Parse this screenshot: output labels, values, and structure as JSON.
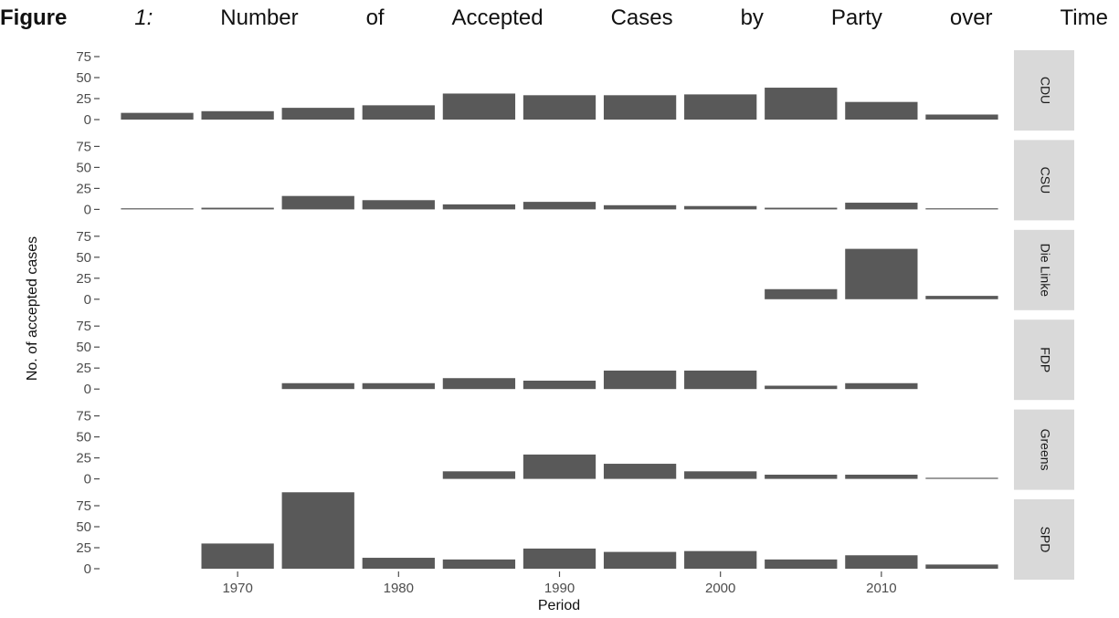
{
  "caption": {
    "words": [
      "Figure",
      "1:",
      "Number",
      "of",
      "Accepted",
      "Cases",
      "by",
      "Party",
      "over",
      "Time"
    ]
  },
  "chart_data": {
    "type": "bar",
    "facet": "Party",
    "xlabel": "Period",
    "ylabel": "No. of accepted cases",
    "x": [
      1965,
      1970,
      1975,
      1980,
      1985,
      1990,
      1995,
      2000,
      2005,
      2010,
      2015
    ],
    "x_ticks": [
      1970,
      1980,
      1990,
      2000,
      2010
    ],
    "y_ticks": [
      0,
      25,
      50,
      75
    ],
    "ylim": [
      0,
      82
    ],
    "grid": false,
    "bar_color": "#595959",
    "strip_color": "#d9d9d9",
    "panels": [
      {
        "name": "CDU",
        "values": [
          8,
          10,
          14,
          17,
          31,
          29,
          29,
          30,
          38,
          21,
          6
        ]
      },
      {
        "name": "CSU",
        "values": [
          1,
          2,
          16,
          11,
          6,
          9,
          5,
          4,
          2,
          8,
          1
        ]
      },
      {
        "name": "Die Linke",
        "values": [
          null,
          null,
          null,
          null,
          null,
          null,
          null,
          null,
          12,
          60,
          4
        ]
      },
      {
        "name": "FDP",
        "values": [
          null,
          null,
          7,
          7,
          13,
          10,
          22,
          22,
          4,
          7,
          null
        ]
      },
      {
        "name": "Greens",
        "values": [
          null,
          null,
          null,
          null,
          9,
          29,
          18,
          9,
          5,
          5,
          1
        ]
      },
      {
        "name": "SPD",
        "values": [
          null,
          30,
          91,
          13,
          11,
          24,
          20,
          21,
          11,
          16,
          5
        ]
      }
    ]
  }
}
